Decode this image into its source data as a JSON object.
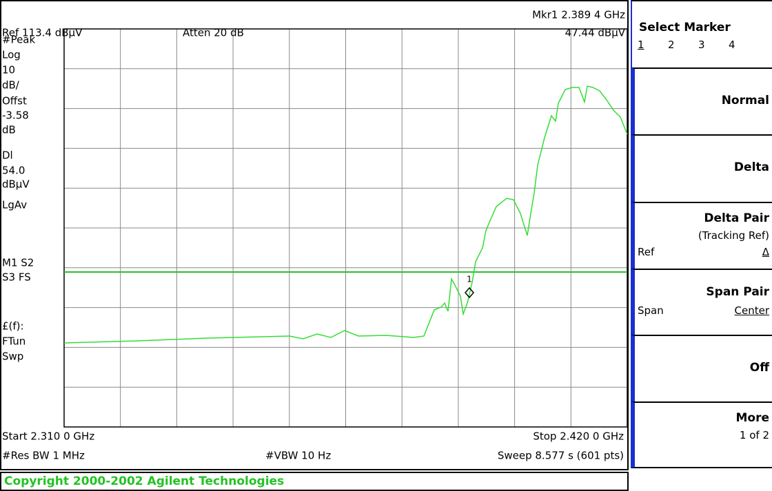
{
  "screen": {
    "marker_readout": "Mkr1  2.389 4 GHz",
    "marker_value": "47.44 dBµV",
    "ref": "Ref 113.4 dBµV",
    "atten": "Atten 20 dB",
    "side_labels": [
      "#Peak",
      "Log",
      "10",
      "dB/",
      "Offst",
      "-3.58",
      "dB",
      "Dl",
      "54.0",
      "dBµV",
      "LgAv",
      "M1  S2",
      "S3  FS",
      "£(f):",
      "FTun",
      "Swp"
    ],
    "marker_number": "1",
    "start": "Start 2.310 0 GHz",
    "stop": "Stop 2.420 0 GHz",
    "res_bw": "#Res BW 1 MHz",
    "vbw": "#VBW 10 Hz",
    "sweep": "Sweep 8.577 s (601 pts)"
  },
  "softkeys": [
    {
      "title": "Select Marker",
      "sub": [
        "1",
        "2",
        "3",
        "4"
      ]
    },
    {
      "title": "Normal"
    },
    {
      "title": "Delta"
    },
    {
      "title": "Delta Pair",
      "note": "(Tracking Ref)",
      "sub": [
        "Ref",
        "Δ"
      ]
    },
    {
      "title": "Span Pair",
      "sub": [
        "Span",
        "Center"
      ]
    },
    {
      "title": "Off"
    },
    {
      "title": "More",
      "note": "1 of 2"
    }
  ],
  "copyright": "Copyright 2000-2002 Agilent Technologies"
}
